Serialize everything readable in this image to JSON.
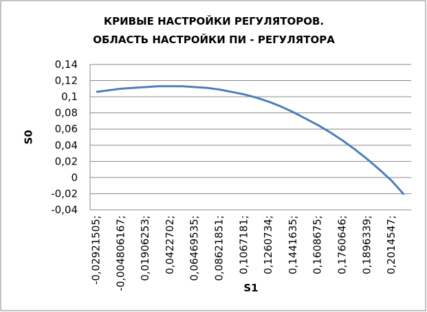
{
  "chart_data": {
    "type": "line",
    "title": "КРИВЫЕ НАСТРОЙКИ РЕГУЛЯТОРОВ. ОБЛАСТЬ НАСТРОЙКИ ПИ - РЕГУЛЯТОРА",
    "x_label": "S1",
    "y_label": "S0",
    "categories": [
      "-0,02921505;",
      null,
      "-0,004806167;",
      null,
      "0,01906253;",
      null,
      "0,0422702;",
      null,
      "0,06469535;",
      null,
      "0,08621851;",
      null,
      "0,1067181;",
      null,
      "0,1260734;",
      null,
      "0,1441635;",
      null,
      "0,1608675;",
      null,
      "0,1760646;",
      null,
      "0,1896339;",
      null,
      "0,2014547;",
      null
    ],
    "series": [
      {
        "color": "#4a7ebb",
        "values": [
          0.106,
          0.108,
          0.11,
          0.111,
          0.112,
          0.113,
          0.113,
          0.113,
          0.112,
          0.111,
          0.109,
          0.106,
          0.103,
          0.099,
          0.094,
          0.088,
          0.081,
          0.073,
          0.065,
          0.056,
          0.046,
          0.035,
          0.023,
          0.01,
          -0.004,
          -0.021
        ]
      }
    ],
    "ylim": [
      -0.04,
      0.14
    ],
    "yticks": [
      {
        "value": -0.04,
        "label": "-0,04"
      },
      {
        "value": -0.02,
        "label": "-0,02"
      },
      0,
      {
        "value": 0.02,
        "label": "0,02"
      },
      {
        "value": 0.04,
        "label": "0,04"
      },
      {
        "value": 0.06,
        "label": "0,06"
      },
      {
        "value": 0.08,
        "label": "0,08"
      },
      {
        "value": 0.1,
        "label": "0,1"
      },
      {
        "value": 0.12,
        "label": "0,12"
      },
      {
        "value": 0.14,
        "label": "0,14"
      }
    ],
    "grid": true
  }
}
